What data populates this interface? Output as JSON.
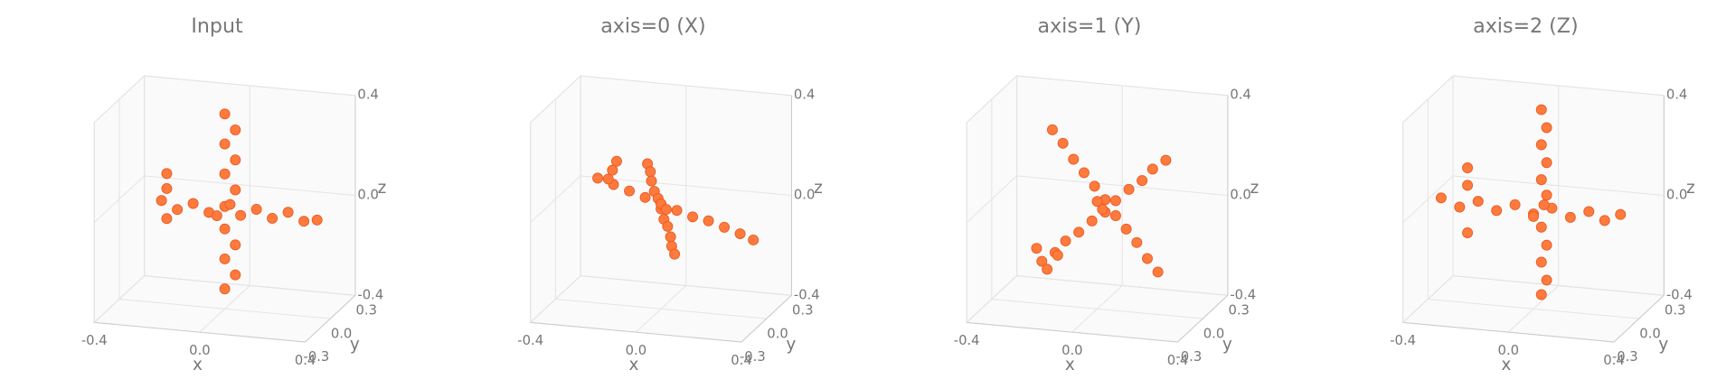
{
  "chart_data": [
    {
      "type": "scatter3d",
      "title": "Input",
      "xlabel": "x",
      "ylabel": "y",
      "zlabel": "z",
      "color": "#ff7a3d",
      "xlim": [
        -0.4,
        0.4
      ],
      "ylim": [
        -0.3,
        0.3
      ],
      "zlim": [
        -0.4,
        0.4
      ],
      "xticks": [
        -0.4,
        {
          "value": 0,
          "label": "0.0"
        },
        0.4
      ],
      "yticks": [
        -0.3,
        {
          "value": 0,
          "label": "0.0"
        },
        0.3
      ],
      "zticks": [
        -0.4,
        {
          "value": 0,
          "label": "0.0"
        },
        0.4
      ],
      "grid": true,
      "x": [
        -0.24,
        -0.18,
        -0.12,
        -0.06,
        0.0,
        0.06,
        0.12,
        0.18,
        0.24,
        0.3,
        0.35,
        0.0,
        0.04,
        0.0,
        0.04,
        0.0,
        0.04,
        0.0,
        0.04,
        0.0,
        0.04,
        0.0,
        -0.22,
        -0.22,
        -0.22,
        0.02,
        -0.03
      ],
      "y": [
        0,
        0,
        0,
        0,
        0,
        0,
        0,
        0,
        0,
        0,
        0,
        0,
        0,
        0,
        0,
        0,
        0,
        0,
        0,
        0,
        0,
        0,
        0,
        0,
        0,
        0,
        0
      ],
      "z": [
        0.01,
        -0.02,
        0.01,
        -0.02,
        0.01,
        -0.02,
        0.01,
        -0.02,
        0.01,
        -0.02,
        -0.01,
        0.38,
        0.32,
        0.26,
        0.2,
        0.14,
        0.08,
        -0.08,
        -0.14,
        -0.2,
        -0.26,
        -0.32,
        0.12,
        0.06,
        -0.06,
        0.02,
        -0.03
      ]
    },
    {
      "type": "scatter3d",
      "title": "axis=0 (X)",
      "xlabel": "x",
      "ylabel": "y",
      "zlabel": "z",
      "color": "#ff7a3d",
      "xlim": [
        -0.4,
        0.4
      ],
      "ylim": [
        -0.3,
        0.3
      ],
      "zlim": [
        -0.4,
        0.4
      ],
      "xticks": [
        -0.4,
        {
          "value": 0,
          "label": "0.0"
        },
        0.4
      ],
      "yticks": [
        -0.3,
        {
          "value": 0,
          "label": "0.0"
        },
        0.3
      ],
      "zticks": [
        -0.4,
        {
          "value": 0,
          "label": "0.0"
        },
        0.4
      ],
      "grid": true,
      "x": [
        -0.24,
        -0.18,
        -0.12,
        -0.06,
        0.0,
        0.06,
        0.12,
        0.18,
        0.24,
        0.3,
        0.35,
        -0.14,
        -0.11,
        -0.09,
        -0.06,
        -0.03,
        0,
        0.03,
        0.06,
        0.09,
        0.11,
        0.14,
        -0.2,
        -0.2,
        -0.2,
        0,
        0.02
      ],
      "y": [
        0,
        0,
        0,
        0,
        0,
        0,
        0,
        0,
        0,
        0,
        0,
        0.28,
        0.22,
        0.17,
        0.11,
        0.06,
        0,
        -0.06,
        -0.11,
        -0.17,
        -0.22,
        -0.28,
        0.1,
        0.05,
        0,
        0,
        0
      ],
      "z": [
        0.1,
        0.08,
        0.06,
        0.04,
        0.02,
        0.0,
        -0.02,
        -0.03,
        -0.05,
        -0.07,
        -0.09,
        0.08,
        0.07,
        0.05,
        0.03,
        0.02,
        0,
        -0.02,
        -0.03,
        -0.05,
        -0.07,
        -0.08,
        0.14,
        0.12,
        0.1,
        0.02,
        0
      ]
    },
    {
      "type": "scatter3d",
      "title": "axis=1 (Y)",
      "xlabel": "x",
      "ylabel": "y",
      "zlabel": "z",
      "color": "#ff7a3d",
      "xlim": [
        -0.4,
        0.4
      ],
      "ylim": [
        -0.3,
        0.3
      ],
      "zlim": [
        -0.4,
        0.4
      ],
      "xticks": [
        -0.4,
        {
          "value": 0,
          "label": "0.0"
        },
        0.4
      ],
      "yticks": [
        -0.3,
        {
          "value": 0,
          "label": "0.0"
        },
        0.3
      ],
      "zticks": [
        -0.4,
        {
          "value": 0,
          "label": "0.0"
        },
        0.4
      ],
      "grid": true,
      "x": [
        -0.21,
        -0.16,
        -0.12,
        -0.07,
        -0.02,
        0.03,
        0.07,
        0.12,
        0.17,
        0.21,
        0.26,
        -0.17,
        -0.13,
        -0.09,
        -0.05,
        -0.01,
        0.03,
        0.07,
        0.11,
        0.15,
        0.19,
        0.23,
        -0.23,
        -0.19,
        -0.15,
        0.02,
        0
      ],
      "y": [
        0,
        0,
        0,
        0,
        0,
        0,
        0,
        0,
        0,
        0,
        0,
        0,
        0,
        0,
        0,
        0,
        0,
        0,
        0,
        0,
        0,
        0,
        0,
        0,
        0,
        0,
        0
      ],
      "z": [
        -0.23,
        -0.19,
        -0.14,
        -0.1,
        -0.05,
        -0.01,
        0.04,
        0.09,
        0.13,
        0.18,
        0.22,
        0.3,
        0.25,
        0.19,
        0.14,
        0.09,
        0.04,
        -0.02,
        -0.07,
        -0.12,
        -0.18,
        -0.23,
        -0.18,
        -0.26,
        -0.2,
        0,
        0.03
      ]
    },
    {
      "type": "scatter3d",
      "title": "axis=2 (Z)",
      "xlabel": "x",
      "ylabel": "y",
      "zlabel": "z",
      "color": "#ff7a3d",
      "xlim": [
        -0.4,
        0.4
      ],
      "ylim": [
        -0.3,
        0.3
      ],
      "zlim": [
        -0.4,
        0.4
      ],
      "xticks": [
        -0.4,
        {
          "value": 0,
          "label": "0.0"
        },
        0.4
      ],
      "yticks": [
        -0.3,
        {
          "value": 0,
          "label": "0.0"
        },
        0.3
      ],
      "zticks": [
        -0.4,
        {
          "value": 0,
          "label": "0.0"
        },
        0.4
      ],
      "grid": true,
      "x": [
        -0.35,
        -0.28,
        -0.21,
        -0.14,
        -0.07,
        0.0,
        0.07,
        0.14,
        0.21,
        0.27,
        0.33,
        0.03,
        0.05,
        0.03,
        0.05,
        0.03,
        0.05,
        0.03,
        0.05,
        0.03,
        0.05,
        0.03,
        -0.25,
        -0.25,
        -0.25,
        0.04,
        0.0
      ],
      "y": [
        0,
        0,
        0,
        0,
        0,
        0,
        0,
        0,
        0,
        0,
        0,
        0,
        0,
        0,
        0,
        0,
        0,
        0,
        0,
        0,
        0,
        0,
        0,
        0,
        0,
        0,
        0
      ],
      "z": [
        0.01,
        -0.02,
        0.01,
        -0.02,
        0.01,
        -0.02,
        0.01,
        -0.02,
        0.01,
        -0.02,
        0.01,
        0.4,
        0.33,
        0.26,
        0.19,
        0.12,
        0.06,
        -0.07,
        -0.14,
        -0.21,
        -0.28,
        -0.34,
        0.14,
        0.07,
        -0.12,
        0.02,
        -0.03
      ]
    }
  ]
}
